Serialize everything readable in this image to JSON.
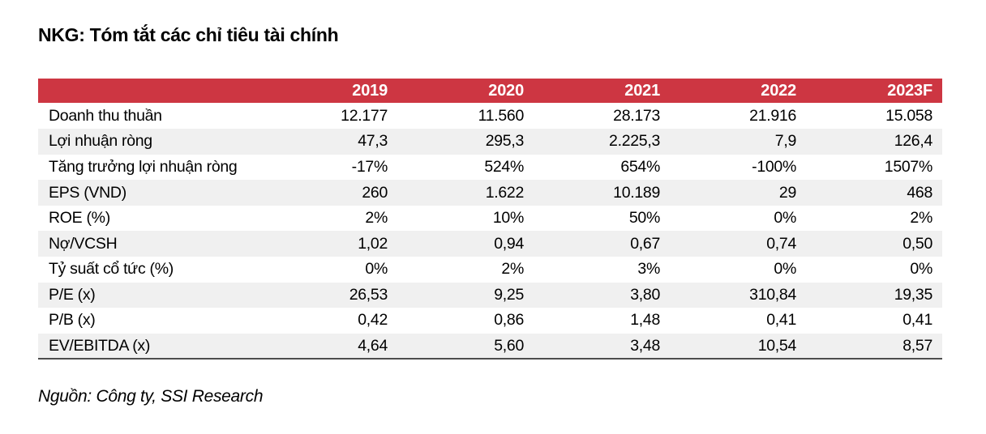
{
  "title": "NKG: Tóm tắt các chỉ tiêu tài chính",
  "source": "Nguồn: Công ty, SSI Research",
  "colors": {
    "header_bg": "#CD3642",
    "header_text": "#FFFFFF",
    "stripe_bg": "#F0F0F0",
    "body_text": "#000000",
    "bottom_rule": "#4D4D4D"
  },
  "table": {
    "corner_label": "",
    "years": [
      "2019",
      "2020",
      "2021",
      "2022",
      "2023F"
    ],
    "rows": [
      {
        "label": "Doanh thu thuần",
        "values": [
          "12.177",
          "11.560",
          "28.173",
          "21.916",
          "15.058"
        ]
      },
      {
        "label": "Lợi nhuận ròng",
        "values": [
          "47,3",
          "295,3",
          "2.225,3",
          "7,9",
          "126,4"
        ]
      },
      {
        "label": "Tăng trưởng lợi nhuận ròng",
        "values": [
          "-17%",
          "524%",
          "654%",
          "-100%",
          "1507%"
        ]
      },
      {
        "label": "EPS (VND)",
        "values": [
          "260",
          "1.622",
          "10.189",
          "29",
          "468"
        ]
      },
      {
        "label": "ROE (%)",
        "values": [
          "2%",
          "10%",
          "50%",
          "0%",
          "2%"
        ]
      },
      {
        "label": "Nợ/VCSH",
        "values": [
          "1,02",
          "0,94",
          "0,67",
          "0,74",
          "0,50"
        ]
      },
      {
        "label": "Tỷ suất cổ tức (%)",
        "values": [
          "0%",
          "2%",
          "3%",
          "0%",
          "0%"
        ]
      },
      {
        "label": "P/E (x)",
        "values": [
          "26,53",
          "9,25",
          "3,80",
          "310,84",
          "19,35"
        ]
      },
      {
        "label": "P/B (x)",
        "values": [
          "0,42",
          "0,86",
          "1,48",
          "0,41",
          "0,41"
        ]
      },
      {
        "label": "EV/EBITDA (x)",
        "values": [
          "4,64",
          "5,60",
          "3,48",
          "10,54",
          "8,57"
        ]
      }
    ]
  }
}
